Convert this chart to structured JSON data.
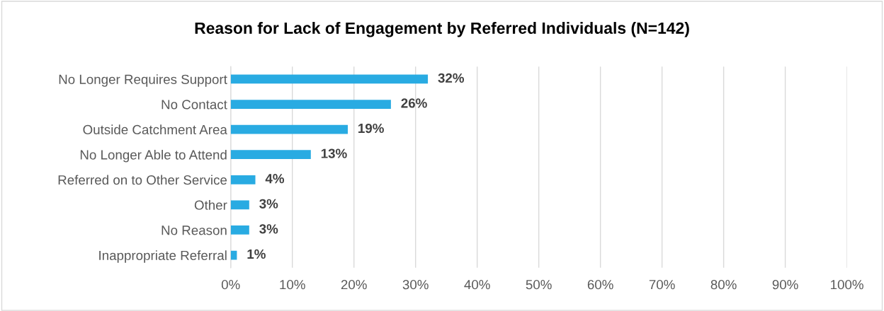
{
  "chart_data": {
    "type": "bar",
    "orientation": "horizontal",
    "title": "Reason for Lack of Engagement by Referred Individuals (N=142)",
    "categories": [
      "No Longer Requires Support",
      "No Contact",
      "Outside Catchment Area",
      "No Longer Able to Attend",
      "Referred on to Other Service",
      "Other",
      "No Reason",
      "Inappropriate Referral"
    ],
    "values": [
      32,
      26,
      19,
      13,
      4,
      3,
      3,
      1
    ],
    "value_labels": [
      "32%",
      "26%",
      "19%",
      "13%",
      "4%",
      "3%",
      "3%",
      "1%"
    ],
    "color": "#29abe2",
    "xlim": [
      0,
      100
    ],
    "xticks": [
      {
        "value": 0,
        "label": "0%"
      },
      {
        "value": 10,
        "label": "10%"
      },
      {
        "value": 20,
        "label": "20%"
      },
      {
        "value": 30,
        "label": "30%"
      },
      {
        "value": 40,
        "label": "40%"
      },
      {
        "value": 50,
        "label": "50%"
      },
      {
        "value": 60,
        "label": "60%"
      },
      {
        "value": 70,
        "label": "70%"
      },
      {
        "value": 80,
        "label": "80%"
      },
      {
        "value": 90,
        "label": "90%"
      },
      {
        "value": 100,
        "label": "100%"
      }
    ],
    "grid": "x"
  }
}
